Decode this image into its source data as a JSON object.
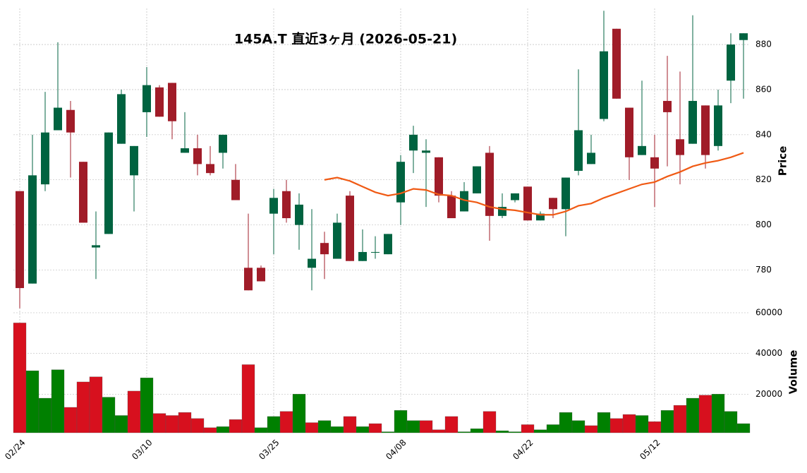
{
  "chart_data": {
    "type": "candlestick",
    "title": "145A.T 直近3ヶ月 (2026-05-21)",
    "categories": [
      "02/24",
      null,
      null,
      null,
      null,
      null,
      null,
      null,
      null,
      null,
      "03/10",
      null,
      null,
      null,
      null,
      null,
      null,
      null,
      null,
      null,
      "03/25",
      null,
      null,
      null,
      null,
      null,
      null,
      null,
      null,
      null,
      "04/08",
      null,
      null,
      null,
      null,
      null,
      null,
      null,
      null,
      null,
      "04/22",
      null,
      null,
      null,
      null,
      null,
      null,
      null,
      null,
      null,
      "05/12",
      null,
      null,
      null,
      null,
      null,
      null,
      null
    ],
    "open": [
      815,
      774,
      818,
      842,
      851,
      828,
      790,
      796,
      836,
      822,
      850,
      861,
      863,
      832,
      834,
      827,
      832,
      820,
      781,
      781,
      805,
      815,
      800,
      781,
      792,
      785,
      813,
      784,
      788,
      787,
      810,
      833,
      832,
      830,
      813,
      806,
      814,
      832,
      804,
      811,
      817,
      802,
      812,
      807,
      824,
      827,
      847,
      887,
      852,
      831,
      830,
      855,
      838,
      836,
      853,
      835,
      864,
      882
    ],
    "high": [
      815,
      840,
      859,
      881,
      855,
      828,
      806,
      841,
      860,
      835,
      870,
      862,
      863,
      850,
      840,
      835,
      840,
      827,
      805,
      782,
      816,
      820,
      814,
      807,
      797,
      805,
      815,
      798,
      795,
      796,
      831,
      844,
      838,
      830,
      815,
      819,
      826,
      835,
      814,
      814,
      817,
      806,
      812,
      821,
      869,
      840,
      895,
      887,
      852,
      864,
      840,
      875,
      868,
      893,
      853,
      860,
      885,
      885
    ],
    "low": [
      763,
      774,
      815,
      842,
      821,
      801,
      776,
      796,
      836,
      806,
      839,
      848,
      838,
      832,
      822,
      822,
      825,
      811,
      771,
      775,
      787,
      801,
      789,
      771,
      776,
      785,
      784,
      784,
      785,
      787,
      800,
      823,
      808,
      810,
      803,
      806,
      814,
      793,
      803,
      810,
      802,
      802,
      803,
      795,
      822,
      827,
      846,
      856,
      820,
      831,
      808,
      826,
      818,
      836,
      825,
      833,
      854,
      856
    ],
    "close": [
      772,
      822,
      841,
      852,
      841,
      801,
      791,
      841,
      858,
      835,
      862,
      848,
      846,
      834,
      827,
      823,
      840,
      811,
      771,
      775,
      812,
      803,
      809,
      785,
      787,
      801,
      784,
      788,
      788,
      796,
      828,
      840,
      833,
      813,
      803,
      815,
      826,
      804,
      808,
      814,
      802,
      805,
      807,
      821,
      842,
      832,
      877,
      856,
      830,
      835,
      825,
      850,
      831,
      855,
      831,
      853,
      880,
      885
    ],
    "up_color": "#006340",
    "down_color": "#a01c28",
    "ma": {
      "color": "#f05a14",
      "values": [
        null,
        null,
        null,
        null,
        null,
        null,
        null,
        null,
        null,
        null,
        null,
        null,
        null,
        null,
        null,
        null,
        null,
        null,
        null,
        null,
        null,
        null,
        null,
        null,
        820,
        821,
        819.5,
        817,
        814.5,
        813,
        814,
        816,
        815.5,
        813.5,
        813,
        811,
        810,
        808,
        807,
        806.5,
        805.5,
        804.5,
        804.5,
        806,
        808.5,
        809.5,
        812,
        814,
        816,
        818,
        819,
        821.5,
        823.5,
        826,
        827.5,
        828.5,
        830,
        832
      ]
    },
    "ylabel": "Price",
    "ylim": [
      762,
      896
    ],
    "yticks": [
      780,
      800,
      820,
      840,
      860,
      880
    ],
    "volume": {
      "ylabel": "Volume",
      "ylim": [
        1000,
        60000
      ],
      "yticks": [
        20000,
        40000,
        60000
      ],
      "values": [
        55000,
        31500,
        18000,
        32000,
        13500,
        26000,
        28500,
        18500,
        9500,
        21500,
        28000,
        10500,
        9500,
        11000,
        8000,
        3500,
        4000,
        7500,
        34500,
        3500,
        9000,
        11500,
        20000,
        6000,
        7000,
        4000,
        9000,
        4000,
        5500,
        1500,
        12000,
        7000,
        7000,
        2500,
        9000,
        1500,
        3000,
        11500,
        2000,
        1500,
        5000,
        2500,
        5000,
        11000,
        7000,
        4500,
        11000,
        8000,
        10000,
        9500,
        6500,
        12000,
        14500,
        18000,
        19500,
        20000,
        11500,
        5500
      ],
      "colors": [
        "#d7101e",
        "#008000",
        "#008000",
        "#008000",
        "#d7101e",
        "#d7101e",
        "#d7101e",
        "#008000",
        "#008000",
        "#d7101e",
        "#008000",
        "#d7101e",
        "#d7101e",
        "#d7101e",
        "#d7101e",
        "#d7101e",
        "#008000",
        "#d7101e",
        "#d7101e",
        "#008000",
        "#008000",
        "#d7101e",
        "#008000",
        "#d7101e",
        "#008000",
        "#008000",
        "#d7101e",
        "#008000",
        "#d7101e",
        "#008000",
        "#008000",
        "#008000",
        "#d7101e",
        "#d7101e",
        "#d7101e",
        "#008000",
        "#008000",
        "#d7101e",
        "#008000",
        "#008000",
        "#d7101e",
        "#008000",
        "#008000",
        "#008000",
        "#008000",
        "#d7101e",
        "#008000",
        "#d7101e",
        "#d7101e",
        "#008000",
        "#d7101e",
        "#008000",
        "#d7101e",
        "#008000",
        "#d7101e",
        "#008000",
        "#008000",
        "#008000"
      ]
    }
  }
}
